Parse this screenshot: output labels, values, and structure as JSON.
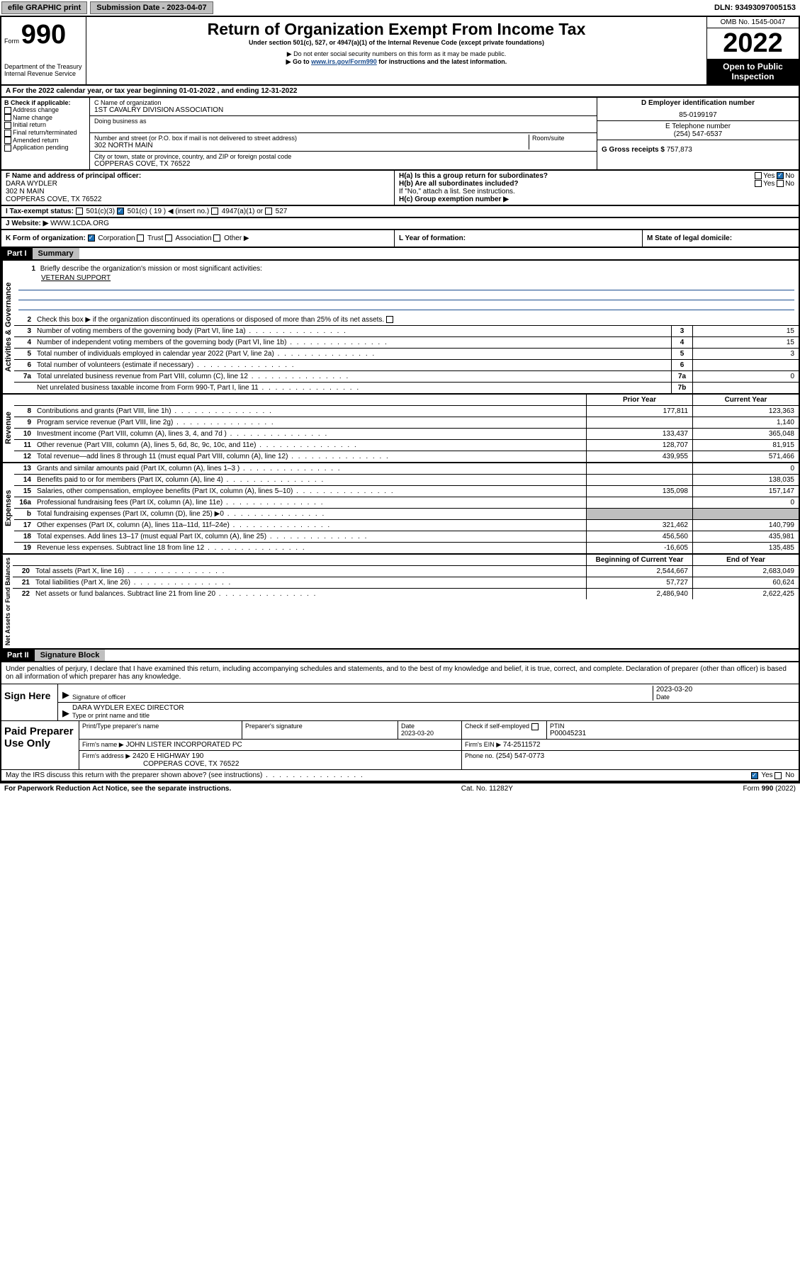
{
  "topbar": {
    "efile": "efile GRAPHIC print",
    "submission_label": "Submission Date - 2023-04-07",
    "dln_label": "DLN: 93493097005153"
  },
  "header": {
    "form_label": "Form",
    "form_number": "990",
    "dept": "Department of the Treasury",
    "irs": "Internal Revenue Service",
    "title": "Return of Organization Exempt From Income Tax",
    "subtitle": "Under section 501(c), 527, or 4947(a)(1) of the Internal Revenue Code (except private foundations)",
    "note1": "▶ Do not enter social security numbers on this form as it may be made public.",
    "note2_pre": "▶ Go to ",
    "note2_link": "www.irs.gov/Form990",
    "note2_post": " for instructions and the latest information.",
    "omb": "OMB No. 1545-0047",
    "year": "2022",
    "public": "Open to Public Inspection"
  },
  "row_a": "A For the 2022 calendar year, or tax year beginning 01-01-2022   , and ending 12-31-2022",
  "section_b": {
    "label": "B Check if applicable:",
    "opts": [
      "Address change",
      "Name change",
      "Initial return",
      "Final return/terminated",
      "Amended return",
      "Application pending"
    ]
  },
  "section_c": {
    "name_label": "C Name of organization",
    "name": "1ST CAVALRY DIVISION ASSOCIATION",
    "dba_label": "Doing business as",
    "street_label": "Number and street (or P.O. box if mail is not delivered to street address)",
    "room_label": "Room/suite",
    "street": "302 NORTH MAIN",
    "city_label": "City or town, state or province, country, and ZIP or foreign postal code",
    "city": "COPPERAS COVE, TX  76522"
  },
  "section_d": {
    "label": "D Employer identification number",
    "value": "85-0199197"
  },
  "section_e": {
    "label": "E Telephone number",
    "value": "(254) 547-6537"
  },
  "section_g": {
    "label": "G Gross receipts $",
    "value": "757,873"
  },
  "section_f": {
    "label": "F  Name and address of principal officer:",
    "name": "DARA WYDLER",
    "street": "302 N MAIN",
    "city": "COPPERAS COVE, TX  76522"
  },
  "section_h": {
    "a_label": "H(a)  Is this a group return for subordinates?",
    "b_label": "H(b)  Are all subordinates included?",
    "b_note": "If \"No,\" attach a list. See instructions.",
    "c_label": "H(c)  Group exemption number ▶",
    "yes": "Yes",
    "no": "No"
  },
  "row_i": {
    "label": "I   Tax-exempt status:",
    "o1": "501(c)(3)",
    "o2": "501(c) ( 19 ) ◀ (insert no.)",
    "o3": "4947(a)(1) or",
    "o4": "527"
  },
  "row_j": {
    "label": "J   Website: ▶",
    "value": "WWW.1CDA.ORG"
  },
  "row_k": {
    "label": "K Form of organization:",
    "o1": "Corporation",
    "o2": "Trust",
    "o3": "Association",
    "o4": "Other ▶"
  },
  "row_l": "L Year of formation:",
  "row_m": "M State of legal domicile:",
  "part1": {
    "hdr": "Part I",
    "title": "Summary",
    "vlabels": {
      "ag": "Activities & Governance",
      "rev": "Revenue",
      "exp": "Expenses",
      "nab": "Net Assets or Fund Balances"
    },
    "q1": "Briefly describe the organization's mission or most significant activities:",
    "mission": "VETERAN SUPPORT",
    "q2": "Check this box ▶       if the organization discontinued its operations or disposed of more than 25% of its net assets.",
    "lines_ag": [
      {
        "n": "3",
        "d": "Number of voting members of the governing body (Part VI, line 1a)",
        "b": "3",
        "v": "15"
      },
      {
        "n": "4",
        "d": "Number of independent voting members of the governing body (Part VI, line 1b)",
        "b": "4",
        "v": "15"
      },
      {
        "n": "5",
        "d": "Total number of individuals employed in calendar year 2022 (Part V, line 2a)",
        "b": "5",
        "v": "3"
      },
      {
        "n": "6",
        "d": "Total number of volunteers (estimate if necessary)",
        "b": "6",
        "v": ""
      },
      {
        "n": "7a",
        "d": "Total unrelated business revenue from Part VIII, column (C), line 12",
        "b": "7a",
        "v": "0"
      },
      {
        "n": "",
        "d": "Net unrelated business taxable income from Form 990-T, Part I, line 11",
        "b": "7b",
        "v": ""
      }
    ],
    "col_hdr_prior": "Prior Year",
    "col_hdr_curr": "Current Year",
    "col_hdr_beg": "Beginning of Current Year",
    "col_hdr_end": "End of Year",
    "lines_rev": [
      {
        "n": "8",
        "d": "Contributions and grants (Part VIII, line 1h)",
        "p": "177,811",
        "c": "123,363"
      },
      {
        "n": "9",
        "d": "Program service revenue (Part VIII, line 2g)",
        "p": "",
        "c": "1,140"
      },
      {
        "n": "10",
        "d": "Investment income (Part VIII, column (A), lines 3, 4, and 7d )",
        "p": "133,437",
        "c": "365,048"
      },
      {
        "n": "11",
        "d": "Other revenue (Part VIII, column (A), lines 5, 6d, 8c, 9c, 10c, and 11e)",
        "p": "128,707",
        "c": "81,915"
      },
      {
        "n": "12",
        "d": "Total revenue—add lines 8 through 11 (must equal Part VIII, column (A), line 12)",
        "p": "439,955",
        "c": "571,466"
      }
    ],
    "lines_exp": [
      {
        "n": "13",
        "d": "Grants and similar amounts paid (Part IX, column (A), lines 1–3 )",
        "p": "",
        "c": "0"
      },
      {
        "n": "14",
        "d": "Benefits paid to or for members (Part IX, column (A), line 4)",
        "p": "",
        "c": "138,035"
      },
      {
        "n": "15",
        "d": "Salaries, other compensation, employee benefits (Part IX, column (A), lines 5–10)",
        "p": "135,098",
        "c": "157,147"
      },
      {
        "n": "16a",
        "d": "Professional fundraising fees (Part IX, column (A), line 11e)",
        "p": "",
        "c": "0"
      },
      {
        "n": "b",
        "d": "Total fundraising expenses (Part IX, column (D), line 25) ▶0",
        "p": "grey",
        "c": "grey"
      },
      {
        "n": "17",
        "d": "Other expenses (Part IX, column (A), lines 11a–11d, 11f–24e)",
        "p": "321,462",
        "c": "140,799"
      },
      {
        "n": "18",
        "d": "Total expenses. Add lines 13–17 (must equal Part IX, column (A), line 25)",
        "p": "456,560",
        "c": "435,981"
      },
      {
        "n": "19",
        "d": "Revenue less expenses. Subtract line 18 from line 12",
        "p": "-16,605",
        "c": "135,485"
      }
    ],
    "lines_nab": [
      {
        "n": "20",
        "d": "Total assets (Part X, line 16)",
        "p": "2,544,667",
        "c": "2,683,049"
      },
      {
        "n": "21",
        "d": "Total liabilities (Part X, line 26)",
        "p": "57,727",
        "c": "60,624"
      },
      {
        "n": "22",
        "d": "Net assets or fund balances. Subtract line 21 from line 20",
        "p": "2,486,940",
        "c": "2,622,425"
      }
    ]
  },
  "part2": {
    "hdr": "Part II",
    "title": "Signature Block",
    "declaration": "Under penalties of perjury, I declare that I have examined this return, including accompanying schedules and statements, and to the best of my knowledge and belief, it is true, correct, and complete. Declaration of preparer (other than officer) is based on all information of which preparer has any knowledge.",
    "sign_here": "Sign Here",
    "sig_officer": "Signature of officer",
    "sig_date": "Date",
    "sig_date_val": "2023-03-20",
    "officer_name": "DARA WYDLER  EXEC DIRECTOR",
    "type_name": "Type or print name and title",
    "paid": "Paid Preparer Use Only",
    "prep_cols": {
      "name": "Print/Type preparer's name",
      "sig": "Preparer's signature",
      "date": "Date",
      "date_val": "2023-03-20",
      "check": "Check        if self-employed",
      "ptin": "PTIN",
      "ptin_val": "P00045231"
    },
    "firm_name_label": "Firm's name    ▶",
    "firm_name": "JOHN LISTER INCORPORATED PC",
    "firm_ein_label": "Firm's EIN ▶",
    "firm_ein": "74-2511572",
    "firm_addr_label": "Firm's address ▶",
    "firm_addr1": "2420 E HIGHWAY 190",
    "firm_addr2": "COPPERAS COVE, TX  76522",
    "phone_label": "Phone no.",
    "phone": "(254) 547-0773",
    "discuss": "May the IRS discuss this return with the preparer shown above? (see instructions)",
    "yes": "Yes",
    "no": "No"
  },
  "footer": {
    "left": "For Paperwork Reduction Act Notice, see the separate instructions.",
    "mid": "Cat. No. 11282Y",
    "right": "Form 990 (2022)"
  }
}
